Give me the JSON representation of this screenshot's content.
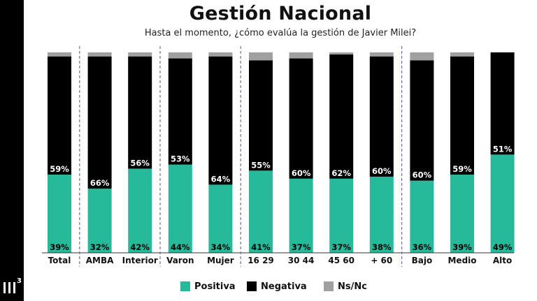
{
  "header": {
    "title": "Gestión Nacional",
    "subtitle": "Hasta el momento, ¿cómo evalúa la gestión de Javier Milei?"
  },
  "logo": {
    "text": "3",
    "icon": "bars-logo-icon"
  },
  "colors": {
    "positiva": "#26b99a",
    "negativa": "#000000",
    "nsnc": "#a0a0a0",
    "separator": "#6d6db0"
  },
  "chart_data": {
    "type": "bar",
    "stacked": true,
    "categories": [
      "Total",
      "AMBA",
      "Interior",
      "Varon",
      "Mujer",
      "16 29",
      "30 44",
      "45 60",
      "+ 60",
      "Bajo",
      "Medio",
      "Alto"
    ],
    "groups": [
      [
        0
      ],
      [
        1,
        2
      ],
      [
        3,
        4
      ],
      [
        5,
        6,
        7,
        8
      ],
      [
        9,
        10,
        11
      ]
    ],
    "series": [
      {
        "name": "Positiva",
        "values": [
          39,
          32,
          42,
          44,
          34,
          41,
          37,
          37,
          38,
          36,
          39,
          49
        ]
      },
      {
        "name": "Negativa",
        "values": [
          59,
          66,
          56,
          53,
          64,
          55,
          60,
          62,
          60,
          60,
          59,
          51
        ]
      },
      {
        "name": "Ns/Nc",
        "values": [
          2,
          2,
          2,
          3,
          2,
          4,
          3,
          1,
          2,
          4,
          2,
          0
        ]
      }
    ],
    "labels_positiva": [
      "39%",
      "32%",
      "42%",
      "44%",
      "34%",
      "41%",
      "37%",
      "37%",
      "38%",
      "36%",
      "39%",
      "49%"
    ],
    "labels_negativa": [
      "59%",
      "66%",
      "56%",
      "53%",
      "64%",
      "55%",
      "60%",
      "62%",
      "60%",
      "60%",
      "59%",
      "51%"
    ],
    "ylim": [
      0,
      100
    ],
    "grid": false,
    "legend_position": "bottom-center"
  },
  "legend": {
    "items": [
      {
        "label": "Positiva"
      },
      {
        "label": "Negativa"
      },
      {
        "label": "Ns/Nc"
      }
    ]
  }
}
